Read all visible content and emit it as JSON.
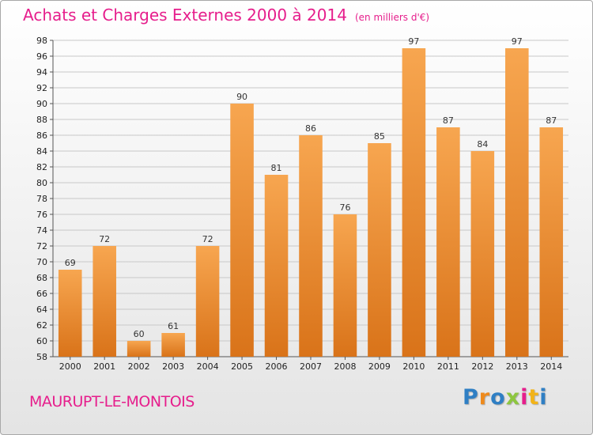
{
  "header": {
    "title": "Achats et Charges Externes 2000 à 2014",
    "unit": "(en milliers d'€)"
  },
  "footer": {
    "commune": "MAURUPT-LE-MONTOIS",
    "logo_text": "Proxiti",
    "logo_letters": [
      {
        "char": "P",
        "color": "#2f7fc4"
      },
      {
        "char": "r",
        "color": "#ee8a1c"
      },
      {
        "char": "o",
        "color": "#2f7fc4"
      },
      {
        "char": "x",
        "color": "#8dc63f"
      },
      {
        "char": "i",
        "color": "#e61e8c"
      },
      {
        "char": "t",
        "color": "#f2b318"
      },
      {
        "char": "i",
        "color": "#2f7fc4"
      }
    ]
  },
  "chart_data": {
    "type": "bar",
    "title": "Achats et Charges Externes 2000 à 2014",
    "categories": [
      "2000",
      "2001",
      "2002",
      "2003",
      "2004",
      "2005",
      "2006",
      "2007",
      "2008",
      "2009",
      "2010",
      "2011",
      "2012",
      "2013",
      "2014"
    ],
    "values": [
      69,
      72,
      60,
      61,
      72,
      90,
      81,
      86,
      76,
      85,
      97,
      87,
      84,
      97,
      87
    ],
    "ylim": [
      58,
      98
    ],
    "yticks": [
      58,
      60,
      62,
      64,
      66,
      68,
      70,
      72,
      74,
      76,
      78,
      80,
      82,
      84,
      86,
      88,
      90,
      92,
      94,
      96,
      98
    ],
    "grid": true,
    "colors": {
      "bar_top": "#f7a650",
      "bar_bottom": "#d97319",
      "grid": "#c8c8c8",
      "accent": "#e61e8c"
    }
  }
}
